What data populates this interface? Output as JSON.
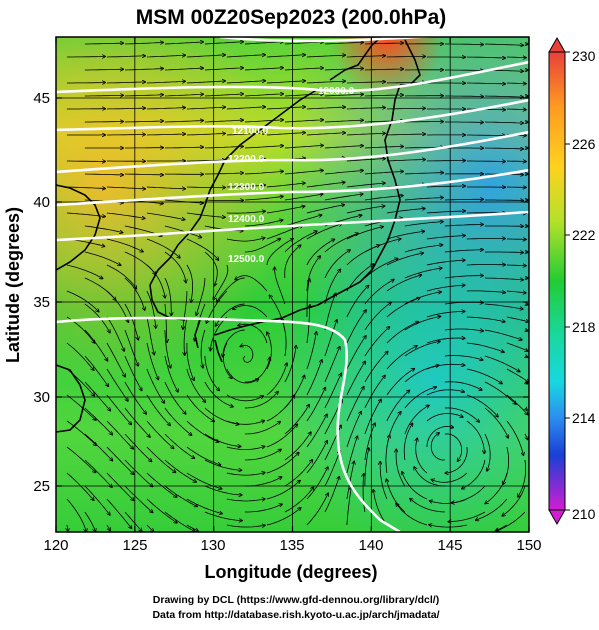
{
  "title": "MSM 00Z20Sep2023 (200.0hPa)",
  "xlabel": "Longitude (degrees)",
  "ylabel": "Latitude  (degrees)",
  "x_ticks": [
    "120",
    "125",
    "130",
    "135",
    "140",
    "145",
    "150"
  ],
  "y_ticks": [
    "25",
    "30",
    "35",
    "40",
    "45"
  ],
  "colorbar_ticks": [
    "230",
    "226",
    "222",
    "218",
    "214",
    "210"
  ],
  "contour_labels": [
    "12000.0",
    "12100.0",
    "12200.0",
    "12300.0",
    "12400.0",
    "12500.0"
  ],
  "footer": {
    "line1": "Drawing by DCL (https://www.gfd-dennou.org/library/dcl/)",
    "line2": "Data from http://database.rish.kyoto-u.ac.jp/arch/jmadata/"
  },
  "colors": {
    "cb_230": "#e8413a",
    "cb_226": "#ffd21e",
    "cb_222": "#22cc33",
    "cb_218": "#18d8c8",
    "cb_214": "#1a3fd6",
    "cb_210": "#d21ed2"
  },
  "chart_data": {
    "type": "heatmap",
    "title": "MSM 00Z20Sep2023 (200.0hPa)",
    "xlabel": "Longitude (degrees)",
    "ylabel": "Latitude  (degrees)",
    "xlim": [
      120,
      150
    ],
    "ylim": [
      22.4,
      47.6
    ],
    "colorbar": {
      "range": [
        210,
        230
      ],
      "ticks": [
        210,
        214,
        218,
        222,
        226,
        230
      ]
    },
    "contours": [
      {
        "label": "12000.0",
        "lat_approx": 45.5
      },
      {
        "label": "12100.0",
        "lat_approx": 43.5
      },
      {
        "label": "12200.0",
        "lat_approx": 41.5
      },
      {
        "label": "12300.0",
        "lat_approx": 39.8
      },
      {
        "label": "12400.0",
        "lat_approx": 38.2
      },
      {
        "label": "12500.0",
        "lat_approx": 34.0
      }
    ]
  }
}
